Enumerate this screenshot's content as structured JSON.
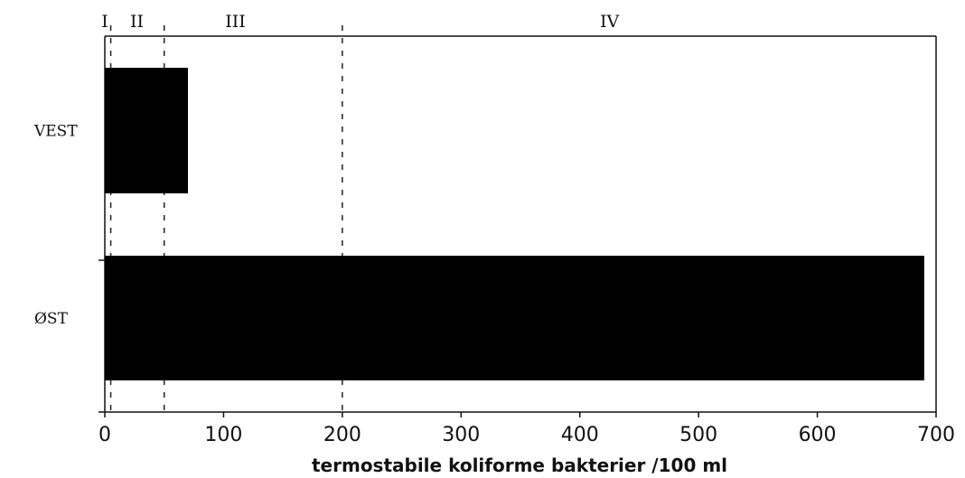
{
  "chart_data": {
    "type": "bar",
    "orientation": "horizontal",
    "categories": [
      "VEST",
      "ØST"
    ],
    "values": [
      70,
      690
    ],
    "xlabel": "termostabile koliforme bakterier /100 ml",
    "xlim": [
      0,
      700
    ],
    "xticks": [
      0,
      100,
      200,
      300,
      400,
      500,
      600,
      700
    ],
    "bar_color": "#000000",
    "class_boundaries": [
      5,
      50,
      200
    ],
    "classes": [
      "I",
      "II",
      "III",
      "IV"
    ],
    "class_label_positions": [
      0,
      27,
      110,
      425
    ],
    "grid": false,
    "legend": "none"
  }
}
